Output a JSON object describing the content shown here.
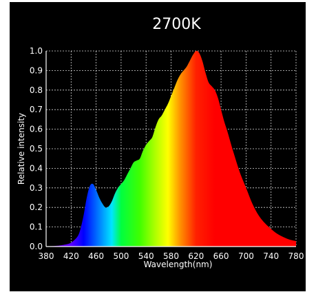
{
  "chart_data": {
    "type": "area",
    "title": "2700K",
    "xlabel": "Wavelength(nm)",
    "ylabel": "Relative intensity",
    "xlim": [
      380,
      780
    ],
    "ylim": [
      0.0,
      1.0
    ],
    "grid": true,
    "background": "#000000",
    "x_ticks": [
      380,
      420,
      460,
      500,
      540,
      580,
      620,
      660,
      700,
      740,
      780
    ],
    "x_tick_labels": [
      "380",
      "420",
      "460",
      "500",
      "540",
      "580",
      "620",
      "660",
      "700",
      "740",
      "780"
    ],
    "y_ticks": [
      0.0,
      0.1,
      0.2,
      0.3,
      0.4,
      0.5,
      0.6,
      0.7,
      0.8,
      0.9,
      1.0
    ],
    "y_tick_labels": [
      "0.0",
      "0.1",
      "0.2",
      "0.3",
      "0.4",
      "0.5",
      "0.6",
      "0.7",
      "0.8",
      "0.9",
      "1.0"
    ],
    "x": [
      380,
      400,
      410,
      420,
      430,
      435,
      440,
      445,
      450,
      455,
      460,
      465,
      470,
      475,
      480,
      485,
      490,
      495,
      500,
      505,
      510,
      515,
      520,
      525,
      530,
      535,
      540,
      545,
      550,
      555,
      560,
      565,
      570,
      575,
      580,
      585,
      590,
      595,
      600,
      605,
      610,
      615,
      620,
      625,
      630,
      635,
      640,
      645,
      650,
      655,
      660,
      665,
      670,
      680,
      690,
      700,
      710,
      720,
      730,
      740,
      750,
      760,
      770,
      780
    ],
    "y": [
      0.0,
      0.005,
      0.01,
      0.02,
      0.05,
      0.09,
      0.16,
      0.25,
      0.31,
      0.32,
      0.29,
      0.25,
      0.22,
      0.2,
      0.205,
      0.23,
      0.27,
      0.3,
      0.32,
      0.34,
      0.37,
      0.4,
      0.43,
      0.44,
      0.45,
      0.49,
      0.52,
      0.54,
      0.56,
      0.61,
      0.65,
      0.67,
      0.7,
      0.73,
      0.77,
      0.81,
      0.85,
      0.88,
      0.9,
      0.92,
      0.95,
      0.98,
      1.0,
      0.99,
      0.95,
      0.89,
      0.84,
      0.82,
      0.8,
      0.76,
      0.7,
      0.64,
      0.59,
      0.48,
      0.38,
      0.3,
      0.22,
      0.16,
      0.12,
      0.09,
      0.065,
      0.048,
      0.035,
      0.028
    ],
    "spectrum_gradient": [
      {
        "nm": 380,
        "color": "#6a00a8"
      },
      {
        "nm": 420,
        "color": "#5b00ff"
      },
      {
        "nm": 440,
        "color": "#0000ff"
      },
      {
        "nm": 465,
        "color": "#0080ff"
      },
      {
        "nm": 485,
        "color": "#00e5ff"
      },
      {
        "nm": 500,
        "color": "#00ff40"
      },
      {
        "nm": 530,
        "color": "#40ff00"
      },
      {
        "nm": 555,
        "color": "#b0ff00"
      },
      {
        "nm": 575,
        "color": "#ffff00"
      },
      {
        "nm": 595,
        "color": "#ff9000"
      },
      {
        "nm": 620,
        "color": "#ff2000"
      },
      {
        "nm": 650,
        "color": "#ff0000"
      },
      {
        "nm": 780,
        "color": "#ff0000"
      }
    ]
  }
}
